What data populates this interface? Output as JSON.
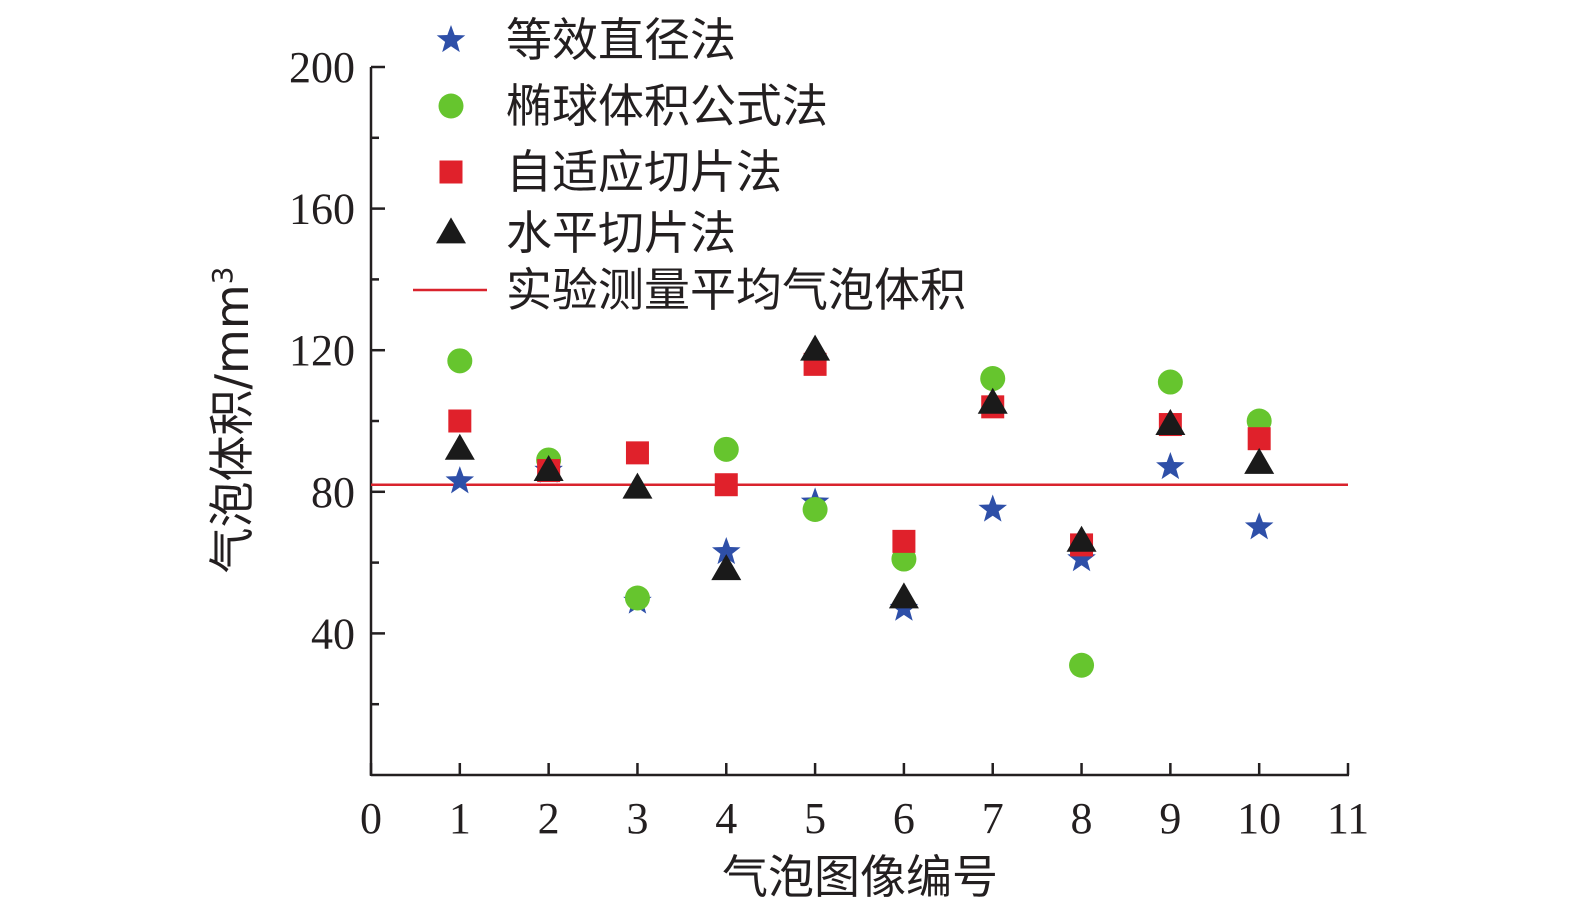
{
  "chart_data": {
    "type": "scatter",
    "xlabel": "气泡图像编号",
    "ylabel": "气泡体积/mm",
    "ylabel_sup": "3",
    "xlim": [
      0,
      11
    ],
    "ylim": [
      0,
      200
    ],
    "xticks": [
      0,
      1,
      2,
      3,
      4,
      5,
      6,
      7,
      8,
      9,
      10,
      11
    ],
    "yticks": [
      40,
      80,
      120,
      160,
      200
    ],
    "grid": false,
    "legend_position": "top-left",
    "series": [
      {
        "name": "等效直径法",
        "marker": "star",
        "color": "#2e4fa8",
        "x": [
          1,
          2,
          3,
          4,
          5,
          6,
          7,
          8,
          9,
          10
        ],
        "y": [
          83,
          86,
          49,
          63,
          77,
          47,
          75,
          61,
          87,
          70
        ]
      },
      {
        "name": "椭球体积公式法",
        "marker": "circle",
        "color": "#66c52e",
        "x": [
          1,
          2,
          3,
          4,
          5,
          6,
          7,
          8,
          9,
          10
        ],
        "y": [
          117,
          89,
          50,
          92,
          75,
          61,
          112,
          31,
          111,
          100
        ]
      },
      {
        "name": "自适应切片法",
        "marker": "square",
        "color": "#e0212b",
        "x": [
          1,
          2,
          3,
          4,
          5,
          6,
          7,
          8,
          9,
          10
        ],
        "y": [
          100,
          86,
          91,
          82,
          116,
          66,
          104,
          65,
          99,
          95
        ]
      },
      {
        "name": "水平切片法",
        "marker": "triangle",
        "color": "#1a1a1a",
        "x": [
          1,
          2,
          3,
          4,
          5,
          6,
          7,
          8,
          9,
          10
        ],
        "y": [
          92,
          86,
          81,
          58,
          120,
          50,
          105,
          66,
          99,
          88
        ]
      }
    ],
    "reference_line": {
      "name": "实验测量平均气泡体积",
      "y": 82,
      "color": "#d9232d"
    }
  }
}
